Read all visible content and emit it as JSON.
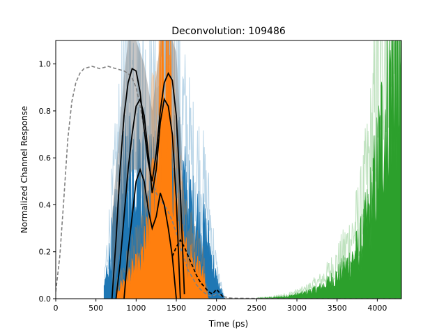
{
  "chart_data": {
    "type": "line",
    "title": "Deconvolution: 109486",
    "xlabel": "Time (ps)",
    "ylabel": "Normalized Channel Response",
    "xlim": [
      0,
      4300
    ],
    "ylim": [
      0,
      1.1
    ],
    "xticks": [
      0,
      500,
      1000,
      1500,
      2000,
      2500,
      3000,
      3500,
      4000
    ],
    "yticks": [
      0.0,
      0.2,
      0.4,
      0.6,
      0.8,
      1.0
    ],
    "xtick_labels": [
      "0",
      "500",
      "1000",
      "1500",
      "2000",
      "2500",
      "3000",
      "3500",
      "4000"
    ],
    "ytick_labels": [
      "0.0",
      "0.2",
      "0.4",
      "0.6",
      "0.8",
      "1.0"
    ],
    "grid": false,
    "legend": "none",
    "colors": {
      "blue": "#1f77b4",
      "orange": "#ff7f0e",
      "green": "#2ca02c",
      "black": "#000000",
      "gray_band": "#808080",
      "dashed": "#7f7f7f"
    },
    "series": [
      {
        "style": "dashed",
        "color": "#7f7f7f",
        "x": [
          0,
          50,
          100,
          150,
          200,
          250,
          300,
          350,
          400,
          450,
          500,
          550,
          600,
          650,
          700,
          750,
          800,
          850,
          900,
          950,
          1000,
          1050,
          1100,
          1150,
          1200,
          1250,
          1300,
          1350,
          1400,
          1450,
          1500,
          1550,
          1600,
          1650,
          1700,
          1750,
          1800,
          1850,
          1900,
          1950,
          2000,
          2050,
          2100,
          2150,
          2200,
          2500,
          3000,
          3500,
          4000,
          4300
        ],
        "y": [
          0.03,
          0.18,
          0.42,
          0.68,
          0.84,
          0.92,
          0.96,
          0.98,
          0.985,
          0.99,
          0.985,
          0.98,
          0.985,
          0.99,
          0.985,
          0.98,
          0.975,
          0.97,
          0.96,
          0.94,
          0.9,
          0.82,
          0.72,
          0.6,
          0.5,
          0.45,
          0.42,
          0.4,
          0.37,
          0.33,
          0.28,
          0.22,
          0.17,
          0.12,
          0.09,
          0.06,
          0.04,
          0.025,
          0.015,
          0.01,
          0.02,
          0.015,
          0.008,
          0.004,
          0.002,
          0.001,
          0.0,
          0.0,
          0.0,
          0.0
        ]
      },
      {
        "style": "noisy-fill",
        "color": "#1f77b4",
        "x_range": [
          600,
          2100
        ],
        "envelope_x": [
          600,
          700,
          800,
          900,
          1000,
          1100,
          1200,
          1300,
          1400,
          1500,
          1600,
          1700,
          1800,
          1900,
          2000,
          2100
        ],
        "envelope_y": [
          0.05,
          0.25,
          0.45,
          0.6,
          0.62,
          0.55,
          0.5,
          0.52,
          0.62,
          0.6,
          0.48,
          0.38,
          0.35,
          0.25,
          0.08,
          0.0
        ]
      },
      {
        "style": "noisy-fill",
        "color": "#ff7f0e",
        "x_range": [
          750,
          1900
        ],
        "envelope_x": [
          750,
          850,
          950,
          1050,
          1150,
          1250,
          1300,
          1350,
          1400,
          1450,
          1500,
          1600,
          1700,
          1800,
          1900
        ],
        "envelope_y": [
          0.03,
          0.08,
          0.12,
          0.15,
          0.28,
          0.6,
          0.85,
          1.0,
          0.92,
          0.7,
          0.35,
          0.2,
          0.18,
          0.15,
          0.0
        ]
      },
      {
        "style": "noisy-fill",
        "color": "#2ca02c",
        "x_range": [
          2500,
          4300
        ],
        "envelope_x": [
          2500,
          2700,
          2900,
          3100,
          3300,
          3500,
          3700,
          3800,
          3900,
          4000,
          4100,
          4200,
          4300
        ],
        "envelope_y": [
          0.002,
          0.005,
          0.012,
          0.025,
          0.05,
          0.1,
          0.18,
          0.25,
          0.38,
          0.58,
          0.85,
          1.05,
          1.1
        ]
      },
      {
        "style": "band",
        "color": "#808080",
        "x": [
          700,
          800,
          850,
          900,
          950,
          1000,
          1050,
          1100,
          1150,
          1200,
          1250,
          1300,
          1350,
          1400,
          1450,
          1500,
          1550,
          1600
        ],
        "lower": [
          0.0,
          0.2,
          0.35,
          0.5,
          0.55,
          0.55,
          0.5,
          0.4,
          0.35,
          0.25,
          0.3,
          0.45,
          0.5,
          0.55,
          0.6,
          0.5,
          0.3,
          0.05
        ],
        "upper": [
          0.35,
          0.75,
          0.95,
          1.1,
          1.1,
          1.1,
          1.05,
          1.0,
          0.9,
          0.8,
          0.95,
          1.1,
          1.1,
          1.1,
          1.1,
          1.05,
          0.75,
          0.4
        ]
      },
      {
        "style": "solid",
        "color": "#000000",
        "x": [
          700,
          750,
          800,
          850,
          900,
          950,
          1000,
          1050,
          1100,
          1150,
          1200,
          1250,
          1300,
          1350,
          1400,
          1450,
          1500,
          1550,
          1600
        ],
        "y": [
          0.0,
          0.25,
          0.55,
          0.78,
          0.92,
          0.98,
          0.97,
          0.88,
          0.72,
          0.58,
          0.5,
          0.62,
          0.8,
          0.92,
          0.96,
          0.93,
          0.78,
          0.45,
          0.02
        ]
      },
      {
        "style": "solid",
        "color": "#000000",
        "x": [
          750,
          800,
          850,
          900,
          950,
          1000,
          1050,
          1100,
          1150,
          1200,
          1250,
          1300,
          1350,
          1400,
          1450,
          1500,
          1550
        ],
        "y": [
          0.0,
          0.15,
          0.35,
          0.55,
          0.7,
          0.82,
          0.85,
          0.78,
          0.62,
          0.45,
          0.55,
          0.75,
          0.85,
          0.82,
          0.7,
          0.42,
          0.0
        ]
      },
      {
        "style": "solid",
        "color": "#000000",
        "x": [
          850,
          900,
          950,
          1000,
          1050,
          1100,
          1150,
          1200,
          1250,
          1300,
          1350,
          1400,
          1450,
          1500
        ],
        "y": [
          0.0,
          0.2,
          0.35,
          0.5,
          0.55,
          0.5,
          0.38,
          0.3,
          0.35,
          0.45,
          0.4,
          0.3,
          0.18,
          0.0
        ]
      },
      {
        "style": "dashed",
        "color": "#000000",
        "x": [
          1450,
          1500,
          1550,
          1600,
          1650,
          1700,
          1750,
          1800,
          1850,
          1900,
          1950,
          2000,
          2050,
          2100
        ],
        "y": [
          0.18,
          0.22,
          0.25,
          0.22,
          0.18,
          0.14,
          0.1,
          0.07,
          0.05,
          0.03,
          0.02,
          0.04,
          0.02,
          0.0
        ]
      }
    ]
  }
}
